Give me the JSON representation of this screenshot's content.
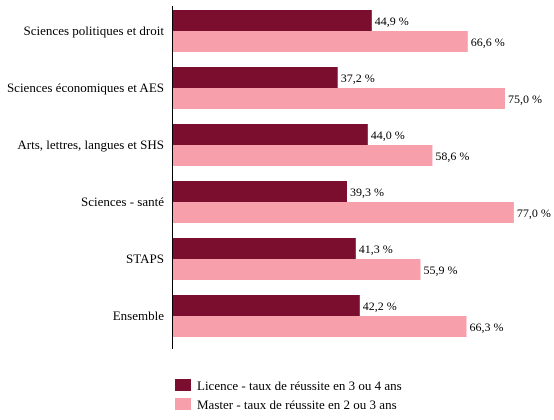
{
  "chart_data": {
    "type": "bar",
    "orientation": "horizontal",
    "categories": [
      "Sciences politiques et droit",
      "Sciences économiques et AES",
      "Arts, lettres, langues et SHS",
      "Sciences - santé",
      "STAPS",
      "Ensemble"
    ],
    "series": [
      {
        "name": "Licence - taux de réussite en 3 ou 4 ans",
        "color": "#7b0d2e",
        "values": [
          44.9,
          37.2,
          44.0,
          39.3,
          41.3,
          42.2
        ],
        "labels": [
          "44,9 %",
          "37,2 %",
          "44,0 %",
          "39,3 %",
          "41,3 %",
          "42,2 %"
        ]
      },
      {
        "name": "Master - taux de réussite en 2 ou 3 ans",
        "color": "#f7a0ac",
        "values": [
          66.6,
          75.0,
          58.6,
          77.0,
          55.9,
          66.3
        ],
        "labels": [
          "66,6 %",
          "75,0 %",
          "58,6 %",
          "77,0 %",
          "55,9 %",
          "66,3 %"
        ]
      }
    ],
    "xlim": [
      0,
      80
    ],
    "grid": false,
    "legend_position": "bottom"
  }
}
